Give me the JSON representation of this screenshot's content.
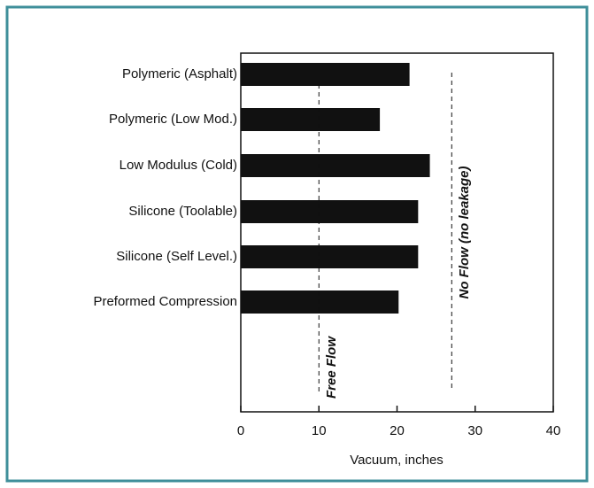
{
  "chart_data": {
    "type": "bar",
    "orientation": "horizontal",
    "categories": [
      "Polymeric (Asphalt)",
      "Polymeric (Low Mod.)",
      "Low Modulus (Cold)",
      "Silicone (Toolable)",
      "Silicone (Self Level.)",
      "Preformed Compression"
    ],
    "values": [
      21.6,
      17.8,
      24.2,
      22.7,
      22.7,
      20.2
    ],
    "color": "#111111",
    "xlabel": "Vacuum, inches",
    "xlim": [
      0,
      40
    ],
    "xticks": [
      0,
      10,
      20,
      30,
      40
    ],
    "reference_lines": [
      {
        "value": 10,
        "label": "Free Flow"
      },
      {
        "value": 27,
        "label": "No Flow (no leakage)"
      }
    ]
  }
}
